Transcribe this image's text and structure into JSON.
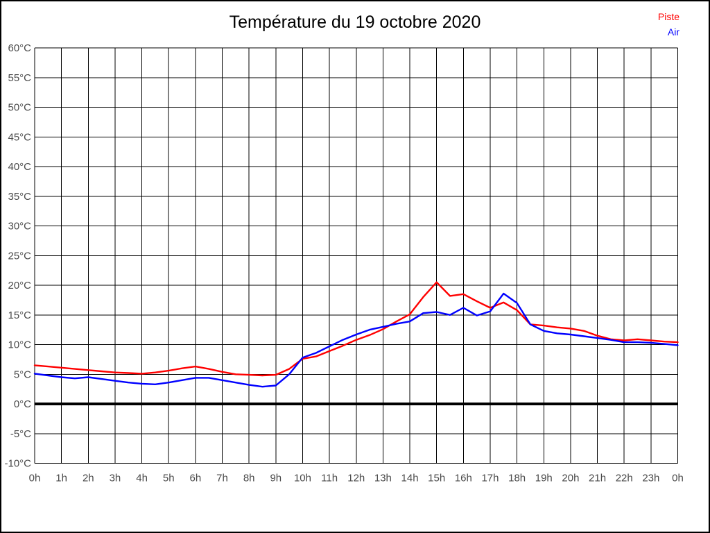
{
  "title": "Température du 19 octobre 2020",
  "legend": {
    "piste": {
      "label": "Piste",
      "color": "#ff0000"
    },
    "air": {
      "label": "Air",
      "color": "#0000ff"
    }
  },
  "colors": {
    "background": "#ffffff",
    "grid": "#000000",
    "axis_text": "#4a4a4a",
    "title_text": "#000000",
    "border": "#000000"
  },
  "chart_data": {
    "type": "line",
    "title": "Température du 19 octobre 2020",
    "xlabel": "",
    "ylabel": "",
    "x_unit": "hours",
    "xlim": [
      0,
      24
    ],
    "ylim": [
      -10,
      60
    ],
    "y_tick_step": 5,
    "grid": true,
    "zero_line_bold": true,
    "legend_position": "top-right",
    "x_tick_labels": [
      "0h",
      "1h",
      "2h",
      "3h",
      "4h",
      "5h",
      "6h",
      "7h",
      "8h",
      "9h",
      "10h",
      "11h",
      "12h",
      "13h",
      "14h",
      "15h",
      "16h",
      "17h",
      "18h",
      "19h",
      "20h",
      "21h",
      "22h",
      "23h",
      "0h"
    ],
    "y_tick_labels": [
      "60°C",
      "55°C",
      "50°C",
      "45°C",
      "40°C",
      "35°C",
      "30°C",
      "25°C",
      "20°C",
      "15°C",
      "10°C",
      "5°C",
      "0°C",
      "-5°C",
      "-10°C"
    ],
    "x": [
      0,
      0.5,
      1,
      1.5,
      2,
      2.5,
      3,
      3.5,
      4,
      4.5,
      5,
      5.5,
      6,
      6.5,
      7,
      7.5,
      8,
      8.5,
      9,
      9.5,
      10,
      10.5,
      11,
      11.5,
      12,
      12.5,
      13,
      13.5,
      14,
      14.5,
      15,
      15.5,
      16,
      16.5,
      17,
      17.5,
      18,
      18.5,
      19,
      19.5,
      20,
      20.5,
      21,
      21.5,
      22,
      22.5,
      23,
      23.5,
      24
    ],
    "series": [
      {
        "name": "Piste",
        "color": "#ff0000",
        "values": [
          6.5,
          6.3,
          6.1,
          5.9,
          5.7,
          5.5,
          5.3,
          5.2,
          5.1,
          5.3,
          5.6,
          6.0,
          6.3,
          5.9,
          5.4,
          5.0,
          4.9,
          4.8,
          4.9,
          5.9,
          7.6,
          8.0,
          8.9,
          9.8,
          10.8,
          11.6,
          12.6,
          13.9,
          15.1,
          18.0,
          20.5,
          18.2,
          18.5,
          17.3,
          16.2,
          17.1,
          15.8,
          13.4,
          13.2,
          12.9,
          12.7,
          12.3,
          11.5,
          10.9,
          10.7,
          10.9,
          10.7,
          10.5,
          10.4
        ]
      },
      {
        "name": "Air",
        "color": "#0000ff",
        "values": [
          5.1,
          4.8,
          4.5,
          4.3,
          4.5,
          4.2,
          3.9,
          3.6,
          3.4,
          3.3,
          3.6,
          4.0,
          4.4,
          4.4,
          4.0,
          3.6,
          3.2,
          2.9,
          3.1,
          5.0,
          7.8,
          8.6,
          9.7,
          10.8,
          11.7,
          12.5,
          13.0,
          13.5,
          13.9,
          15.3,
          15.5,
          15.0,
          16.2,
          14.9,
          15.6,
          18.6,
          17.0,
          13.4,
          12.3,
          11.9,
          11.7,
          11.4,
          11.1,
          10.8,
          10.4,
          10.4,
          10.3,
          10.1,
          9.9
        ]
      }
    ]
  }
}
